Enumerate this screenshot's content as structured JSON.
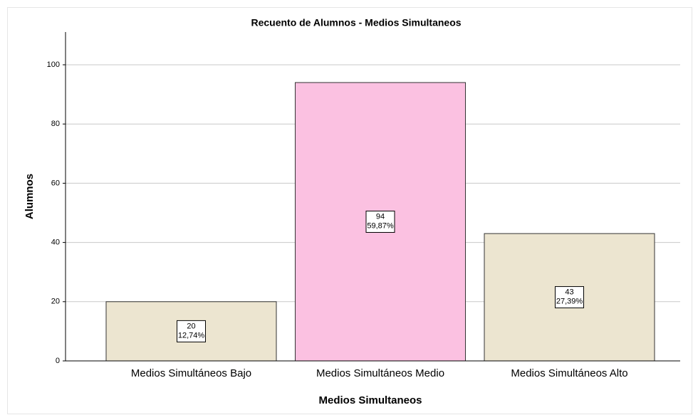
{
  "chart_data": {
    "type": "bar",
    "title": "Recuento de Alumnos - Medios Simultaneos",
    "x_label": "Medios Simultaneos",
    "y_label": "Alumnos",
    "categories": [
      "Medios Simultáneos Bajo",
      "Medios Simultáneos Medio",
      "Medios Simultáneos Alto"
    ],
    "values": [
      20,
      94,
      43
    ],
    "percent_labels": [
      "12,74%",
      "59,87%",
      "27,39%"
    ],
    "colors": [
      "#ece5d0",
      "#fbc1e1",
      "#ece5d0"
    ],
    "ylim": [
      0,
      110
    ],
    "yticks": [
      0,
      20,
      40,
      60,
      80,
      100
    ],
    "grid": true
  }
}
